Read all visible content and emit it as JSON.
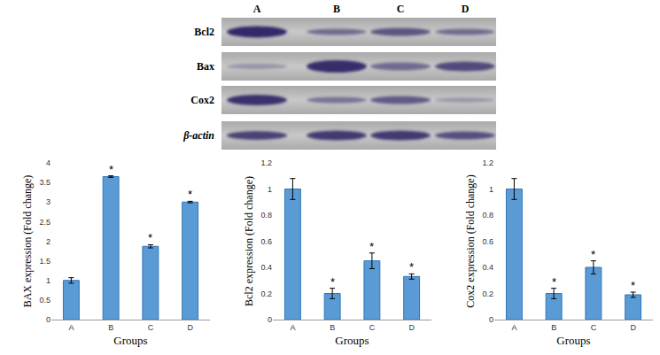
{
  "blot": {
    "lanes": [
      "A",
      "B",
      "C",
      "D"
    ],
    "rows": [
      "Bcl2",
      "Bax",
      "Cox2",
      "β-actin"
    ]
  },
  "chart_data": [
    {
      "type": "bar",
      "categories": [
        "A",
        "B",
        "C",
        "D"
      ],
      "values": [
        1.0,
        3.65,
        1.87,
        3.0
      ],
      "errors": [
        0.07,
        0.02,
        0.04,
        0.02
      ],
      "color": "#5b9bd5",
      "ylim": [
        0,
        4
      ],
      "yticks": [
        0,
        0.5,
        1,
        1.5,
        2,
        2.5,
        3,
        3.5,
        4
      ],
      "grid": false,
      "x_label": "Groups",
      "y_label": "BAX expression (Fold change)",
      "annotations": [
        {
          "x": "B",
          "text": "*"
        },
        {
          "x": "C",
          "text": "*"
        },
        {
          "x": "D",
          "text": "*"
        }
      ]
    },
    {
      "type": "bar",
      "categories": [
        "A",
        "B",
        "C",
        "D"
      ],
      "values": [
        1.0,
        0.2,
        0.45,
        0.33
      ],
      "errors": [
        0.08,
        0.04,
        0.06,
        0.02
      ],
      "color": "#5b9bd5",
      "ylim": [
        0,
        1.2
      ],
      "yticks": [
        0,
        0.2,
        0.4,
        0.6,
        0.8,
        1,
        1.2
      ],
      "grid": false,
      "x_label": "Groups",
      "y_label": "Bcl2 expression (Fold change)",
      "annotations": [
        {
          "x": "B",
          "text": "*"
        },
        {
          "x": "C",
          "text": "*"
        },
        {
          "x": "D",
          "text": "*"
        }
      ]
    },
    {
      "type": "bar",
      "categories": [
        "A",
        "B",
        "C",
        "D"
      ],
      "values": [
        1.0,
        0.2,
        0.4,
        0.19
      ],
      "errors": [
        0.08,
        0.04,
        0.05,
        0.02
      ],
      "color": "#5b9bd5",
      "ylim": [
        0,
        1.2
      ],
      "yticks": [
        0,
        0.2,
        0.4,
        0.6,
        0.8,
        1,
        1.2
      ],
      "grid": false,
      "x_label": "Groups",
      "y_label": "Cox2 expression (Fold change)",
      "annotations": [
        {
          "x": "B",
          "text": "*"
        },
        {
          "x": "C",
          "text": "*"
        },
        {
          "x": "D",
          "text": "*"
        }
      ]
    }
  ]
}
